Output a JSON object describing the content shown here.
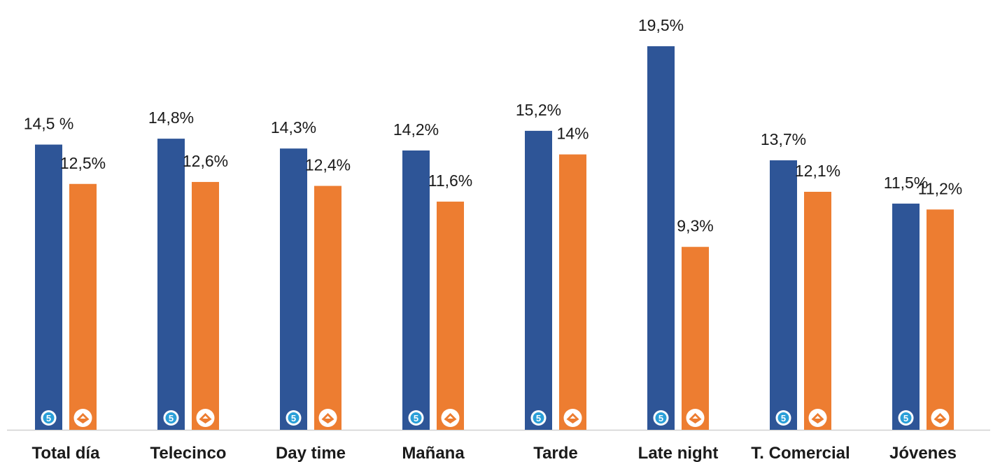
{
  "chart_data": {
    "type": "bar",
    "categories": [
      "Total día",
      "Telecinco",
      "Day time",
      "Mañana",
      "Tarde",
      "Late night",
      "T. Comercial",
      "Jóvenes"
    ],
    "series": [
      {
        "values": [
          14.5,
          14.8,
          14.3,
          14.2,
          15.2,
          19.5,
          13.7,
          11.5
        ],
        "labels": [
          "14,5 %",
          "14,8%",
          "14,3%",
          "14,2%",
          "15,2%",
          "19,5%",
          "13,7%",
          "11,5%"
        ],
        "color": "#2E5597",
        "icon": "telecinco-logo-icon"
      },
      {
        "values": [
          12.5,
          12.6,
          12.4,
          11.6,
          14.0,
          9.3,
          12.1,
          11.2
        ],
        "labels": [
          "12,5%",
          "12,6%",
          "12,4%",
          "11,6%",
          "14%",
          "9,3%",
          "12,1%",
          "11,2%"
        ],
        "color": "#ED7D31",
        "icon": "antena3-logo-icon"
      }
    ],
    "ylim": [
      0,
      21
    ],
    "grid": false,
    "legend": "none",
    "baseline_color": "#D0D0D0"
  }
}
